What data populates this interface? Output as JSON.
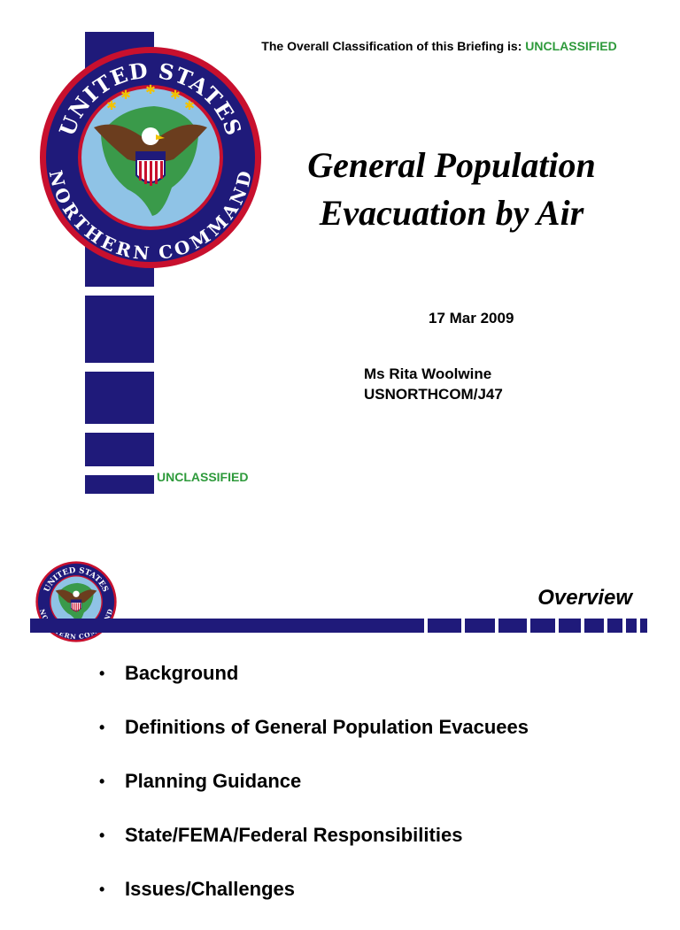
{
  "slide1": {
    "classification_prefix": "The Overall Classification of this Briefing is: ",
    "classification_value": "UNCLASSIFIED",
    "title_line1": "General Population",
    "title_line2": "Evacuation by Air",
    "date": "17 Mar 2009",
    "presenter_name": "Ms Rita Woolwine",
    "presenter_org": "USNORTHCOM/J47",
    "footer_classification": "UNCLASSIFIED"
  },
  "seal": {
    "icon": "usnorthcom-seal-icon",
    "text_top": "UNITED STATES",
    "text_bottom": "NORTHERN COMMAND"
  },
  "slide2": {
    "heading": "Overview",
    "bullets": [
      "Background",
      "Definitions of General Population Evacuees",
      "Planning Guidance",
      "State/FEMA/Federal Responsibilities",
      "Issues/Challenges"
    ]
  },
  "colors": {
    "navy": "#1f1a7a",
    "classification_green": "#2e9a3b",
    "seal_red": "#c8102e",
    "seal_light_blue": "#8fc3e6"
  }
}
